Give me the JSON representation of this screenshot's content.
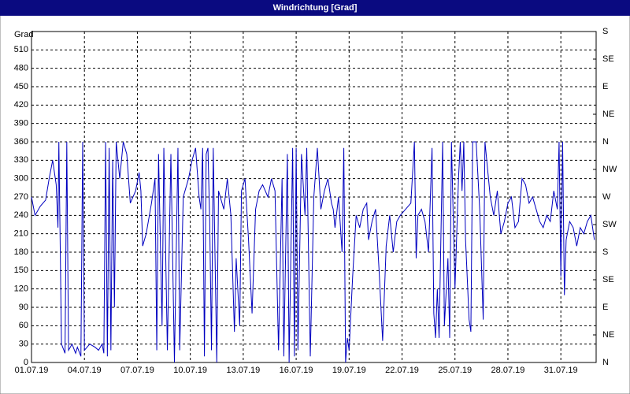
{
  "chart_data": {
    "type": "line",
    "title": "Windrichtung [Grad]",
    "y_label": "Grad",
    "xlim": [
      0,
      32
    ],
    "xticks": [
      {
        "value": 0,
        "label": "01.07.19"
      },
      {
        "value": 3,
        "label": "04.07.19"
      },
      {
        "value": 6,
        "label": "07.07.19"
      },
      {
        "value": 9,
        "label": "10.07.19"
      },
      {
        "value": 12,
        "label": "13.07.19"
      },
      {
        "value": 15,
        "label": "16.07.19"
      },
      {
        "value": 18,
        "label": "19.07.19"
      },
      {
        "value": 21,
        "label": "22.07.19"
      },
      {
        "value": 24,
        "label": "25.07.19"
      },
      {
        "value": 27,
        "label": "28.07.19"
      },
      {
        "value": 30,
        "label": "31.07.19"
      }
    ],
    "ylim": [
      0,
      540
    ],
    "yticks": [
      0,
      30,
      60,
      90,
      120,
      150,
      180,
      210,
      240,
      270,
      300,
      330,
      360,
      390,
      420,
      450,
      480,
      510
    ],
    "y2lim": [
      0,
      540
    ],
    "y2ticks": [
      {
        "value": 0,
        "label": "N"
      },
      {
        "value": 45,
        "label": "NE"
      },
      {
        "value": 90,
        "label": "E"
      },
      {
        "value": 135,
        "label": "SE"
      },
      {
        "value": 180,
        "label": "S"
      },
      {
        "value": 225,
        "label": "SW"
      },
      {
        "value": 270,
        "label": "W"
      },
      {
        "value": 315,
        "label": "NW"
      },
      {
        "value": 360,
        "label": "N"
      },
      {
        "value": 405,
        "label": "NE"
      },
      {
        "value": 450,
        "label": "E"
      },
      {
        "value": 495,
        "label": "SE"
      },
      {
        "value": 540,
        "label": "S"
      }
    ],
    "grid": true,
    "x": [
      0,
      0.2,
      0.5,
      0.8,
      1.0,
      1.2,
      1.4,
      1.5,
      1.55,
      1.7,
      1.9,
      2.0,
      2.1,
      2.3,
      2.5,
      2.6,
      2.8,
      2.9,
      3.0,
      3.3,
      3.6,
      3.8,
      4.0,
      4.1,
      4.2,
      4.3,
      4.4,
      4.5,
      4.6,
      4.7,
      4.8,
      5.0,
      5.2,
      5.4,
      5.6,
      5.9,
      6.1,
      6.2,
      6.3,
      6.5,
      6.8,
      7.0,
      7.1,
      7.2,
      7.4,
      7.5,
      7.7,
      7.9,
      8.1,
      8.3,
      8.4,
      8.6,
      8.9,
      9.1,
      9.3,
      9.5,
      9.6,
      9.7,
      9.8,
      9.9,
      10.0,
      10.1,
      10.2,
      10.3,
      10.5,
      10.6,
      10.9,
      11.1,
      11.3,
      11.5,
      11.6,
      11.8,
      11.9,
      12.1,
      12.3,
      12.5,
      12.7,
      12.9,
      13.1,
      13.4,
      13.6,
      13.8,
      14.0,
      14.2,
      14.3,
      14.5,
      14.6,
      14.8,
      14.9,
      15.0,
      15.1,
      15.3,
      15.5,
      15.6,
      15.8,
      16.0,
      16.2,
      16.4,
      16.6,
      16.8,
      17.0,
      17.1,
      17.2,
      17.4,
      17.6,
      17.7,
      17.8,
      17.9,
      18.0,
      18.2,
      18.4,
      18.6,
      18.8,
      19.0,
      19.1,
      19.3,
      19.5,
      19.7,
      19.9,
      20.1,
      20.3,
      20.5,
      20.7,
      20.9,
      21.2,
      21.5,
      21.7,
      21.8,
      21.9,
      22.1,
      22.3,
      22.5,
      22.7,
      22.8,
      22.9,
      23.0,
      23.1,
      23.3,
      23.4,
      23.6,
      23.7,
      23.8,
      24.0,
      24.2,
      24.3,
      24.4,
      24.5,
      24.6,
      24.8,
      24.9,
      25.0,
      25.2,
      25.4,
      25.6,
      25.7,
      25.9,
      26.0,
      26.2,
      26.4,
      26.6,
      26.8,
      27.0,
      27.2,
      27.4,
      27.6,
      27.8,
      28.0,
      28.2,
      28.4,
      28.6,
      28.8,
      29.0,
      29.2,
      29.4,
      29.6,
      29.8,
      29.9,
      30.0,
      30.1,
      30.2,
      30.3,
      30.5,
      30.7,
      30.9,
      31.1,
      31.3,
      31.5,
      31.7,
      31.9
    ],
    "series": [
      {
        "name": "Windrichtung",
        "color": "#0000c0",
        "values": [
          270,
          240,
          255,
          265,
          300,
          330,
          290,
          220,
          360,
          30,
          15,
          360,
          20,
          30,
          15,
          25,
          10,
          360,
          20,
          30,
          25,
          20,
          30,
          15,
          360,
          10,
          350,
          20,
          330,
          90,
          360,
          300,
          360,
          340,
          260,
          280,
          310,
          280,
          190,
          210,
          260,
          300,
          20,
          340,
          60,
          350,
          20,
          340,
          0,
          350,
          20,
          270,
          300,
          330,
          350,
          270,
          250,
          350,
          10,
          340,
          350,
          230,
          20,
          350,
          0,
          280,
          250,
          300,
          240,
          50,
          170,
          60,
          280,
          300,
          200,
          80,
          250,
          280,
          290,
          270,
          300,
          280,
          20,
          300,
          10,
          340,
          0,
          350,
          10,
          350,
          20,
          340,
          240,
          350,
          10,
          270,
          350,
          250,
          280,
          300,
          260,
          250,
          220,
          270,
          180,
          350,
          0,
          40,
          20,
          140,
          240,
          220,
          250,
          260,
          200,
          230,
          250,
          150,
          35,
          190,
          240,
          180,
          230,
          240,
          250,
          260,
          360,
          170,
          240,
          250,
          230,
          180,
          350,
          80,
          40,
          120,
          40,
          360,
          60,
          170,
          40,
          360,
          120,
          300,
          360,
          280,
          360,
          200,
          70,
          50,
          360,
          360,
          250,
          70,
          360,
          300,
          270,
          240,
          280,
          210,
          230,
          260,
          270,
          220,
          230,
          300,
          290,
          260,
          270,
          250,
          230,
          220,
          240,
          230,
          280,
          250,
          360,
          140,
          360,
          110,
          200,
          230,
          220,
          190,
          220,
          210,
          230,
          240,
          200
        ]
      }
    ]
  }
}
